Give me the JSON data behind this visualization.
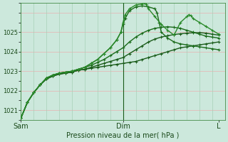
{
  "xlabel": "Pression niveau de la mer( hPa )",
  "bg_color": "#cce8dc",
  "plot_bg_color": "#cce8dc",
  "grid_color_v": "#b8d8c8",
  "grid_color_h": "#e8b8b8",
  "ylim": [
    1020.5,
    1026.5
  ],
  "xlim": [
    0,
    96
  ],
  "x_ticks": [
    0,
    48,
    93
  ],
  "x_tick_labels": [
    "Sam",
    "Dim",
    "L"
  ],
  "vline_x": 48,
  "series": [
    {
      "color": "#1a5c1a",
      "points_x": [
        0,
        3,
        6,
        9,
        12,
        15,
        18,
        21,
        24,
        27,
        30,
        33,
        36,
        39,
        42,
        45,
        48,
        51,
        54,
        57,
        60,
        63,
        66,
        69,
        72,
        75,
        78,
        81,
        84,
        87,
        90,
        93
      ],
      "points_y": [
        1020.6,
        1021.4,
        1021.9,
        1022.3,
        1022.6,
        1022.75,
        1022.85,
        1022.9,
        1022.95,
        1023.05,
        1023.1,
        1023.15,
        1023.2,
        1023.25,
        1023.3,
        1023.35,
        1023.4,
        1023.45,
        1023.5,
        1023.6,
        1023.7,
        1023.8,
        1023.9,
        1024.0,
        1024.1,
        1024.2,
        1024.25,
        1024.3,
        1024.35,
        1024.4,
        1024.45,
        1024.5
      ]
    },
    {
      "color": "#1a5c1a",
      "points_x": [
        0,
        3,
        6,
        9,
        12,
        15,
        18,
        21,
        24,
        27,
        30,
        33,
        36,
        39,
        42,
        45,
        48,
        51,
        54,
        57,
        60,
        63,
        66,
        69,
        72,
        75,
        78,
        81,
        84,
        87,
        90,
        93
      ],
      "points_y": [
        1020.6,
        1021.4,
        1021.9,
        1022.3,
        1022.6,
        1022.75,
        1022.85,
        1022.9,
        1022.95,
        1023.05,
        1023.1,
        1023.2,
        1023.3,
        1023.4,
        1023.5,
        1023.6,
        1023.7,
        1023.9,
        1024.1,
        1024.3,
        1024.5,
        1024.65,
        1024.75,
        1024.82,
        1024.88,
        1024.92,
        1024.95,
        1024.97,
        1024.98,
        1024.95,
        1024.9,
        1024.85
      ]
    },
    {
      "color": "#1a6b1a",
      "points_x": [
        0,
        3,
        6,
        9,
        12,
        15,
        18,
        21,
        24,
        27,
        30,
        33,
        36,
        39,
        42,
        45,
        48,
        51,
        54,
        57,
        60,
        63,
        66,
        69,
        72,
        75,
        78,
        81,
        84,
        87,
        90,
        93
      ],
      "points_y": [
        1020.6,
        1021.4,
        1021.9,
        1022.3,
        1022.65,
        1022.8,
        1022.9,
        1022.95,
        1023.0,
        1023.1,
        1023.2,
        1023.3,
        1023.45,
        1023.6,
        1023.8,
        1024.0,
        1024.2,
        1024.5,
        1024.75,
        1024.95,
        1025.1,
        1025.2,
        1025.25,
        1025.28,
        1025.25,
        1025.2,
        1025.1,
        1025.0,
        1024.9,
        1024.8,
        1024.75,
        1024.7
      ]
    },
    {
      "color": "#1a6b1a",
      "points_x": [
        0,
        3,
        6,
        9,
        12,
        15,
        18,
        21,
        24,
        27,
        30,
        33,
        36,
        39,
        42,
        45,
        47,
        48,
        49,
        51,
        54,
        57,
        60,
        63,
        64,
        65,
        66,
        69,
        72,
        75,
        78,
        81,
        84,
        87,
        90,
        93
      ],
      "points_y": [
        1020.6,
        1021.4,
        1021.9,
        1022.3,
        1022.65,
        1022.8,
        1022.9,
        1022.95,
        1023.0,
        1023.1,
        1023.2,
        1023.4,
        1023.6,
        1023.9,
        1024.2,
        1024.6,
        1025.0,
        1025.4,
        1025.7,
        1026.1,
        1026.3,
        1026.35,
        1026.3,
        1026.2,
        1026.0,
        1025.5,
        1025.0,
        1024.7,
        1024.5,
        1024.4,
        1024.35,
        1024.3,
        1024.25,
        1024.2,
        1024.15,
        1024.1
      ]
    },
    {
      "color": "#2a8a2a",
      "points_x": [
        0,
        3,
        6,
        9,
        12,
        15,
        18,
        21,
        24,
        27,
        30,
        33,
        36,
        39,
        42,
        45,
        47,
        48,
        49,
        51,
        54,
        57,
        58,
        59,
        60,
        63,
        66,
        69,
        72,
        75,
        78,
        79,
        80,
        81,
        84,
        87,
        90,
        93
      ],
      "points_y": [
        1020.6,
        1021.4,
        1021.9,
        1022.3,
        1022.65,
        1022.8,
        1022.9,
        1022.95,
        1023.0,
        1023.1,
        1023.2,
        1023.4,
        1023.6,
        1023.9,
        1024.2,
        1024.6,
        1025.0,
        1025.5,
        1025.9,
        1026.2,
        1026.4,
        1026.45,
        1026.5,
        1026.45,
        1026.2,
        1025.8,
        1025.4,
        1025.1,
        1024.85,
        1025.5,
        1025.8,
        1025.9,
        1025.85,
        1025.7,
        1025.5,
        1025.3,
        1025.1,
        1024.9
      ]
    }
  ],
  "marker": "+",
  "marker_size": 3,
  "linewidth": 1.0
}
